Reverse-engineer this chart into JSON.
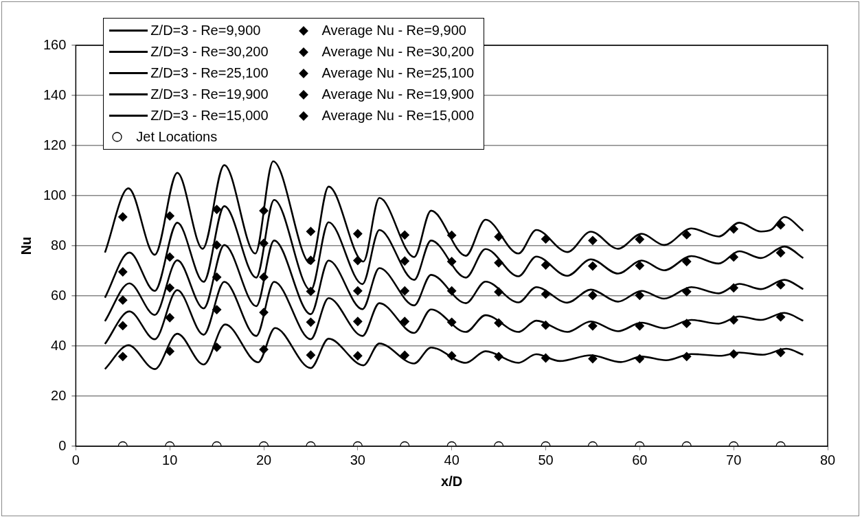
{
  "chart_data": {
    "type": "line",
    "xlabel": "x/D",
    "ylabel": "Nu",
    "xlim": [
      0,
      80
    ],
    "xticks": [
      0,
      10,
      20,
      30,
      40,
      50,
      60,
      70,
      80
    ],
    "ylim": [
      0,
      160
    ],
    "yticks": [
      0,
      20,
      40,
      60,
      80,
      100,
      120,
      140,
      160
    ],
    "grid": "y",
    "legend": "top left",
    "line_style": "solid",
    "series": [
      {
        "name": "Z/D=3 - Re=9,900",
        "color": "#000000",
        "type": "line",
        "marker": "none",
        "x": [
          3.1,
          5.6,
          8.4,
          10.8,
          13.6,
          15.9,
          19.4,
          21.2,
          25.0,
          26.9,
          30.6,
          32.3,
          36.0,
          37.8,
          41.5,
          43.6,
          47.1,
          49.0,
          51.5,
          54.8,
          58.0,
          60.2,
          62.8,
          65.5,
          68.7,
          70.6,
          73.1,
          75.6,
          77.4
        ],
        "values": [
          30.8,
          40.3,
          30.8,
          44.9,
          32.6,
          48.6,
          33.5,
          47.2,
          31.2,
          42.9,
          32.3,
          41.0,
          33.0,
          39.4,
          33.3,
          37.9,
          33.3,
          36.7,
          34.0,
          36.3,
          33.6,
          35.8,
          34.3,
          36.8,
          36.1,
          37.4,
          36.5,
          38.9,
          36.5
        ]
      },
      {
        "name": "Z/D=3 - Re=30,200",
        "color": "#000000",
        "type": "line",
        "marker": "none",
        "x": [
          3.1,
          5.6,
          8.4,
          10.8,
          13.5,
          15.8,
          19.1,
          21.0,
          25.0,
          26.9,
          30.6,
          32.3,
          36.0,
          37.8,
          41.5,
          43.6,
          47.1,
          49.0,
          52.3,
          54.8,
          57.7,
          60.2,
          62.6,
          65.5,
          68.4,
          70.6,
          72.9,
          74.0,
          75.4,
          77.4
        ],
        "values": [
          77.3,
          102.9,
          76.4,
          109.1,
          78.8,
          112.2,
          76.9,
          113.7,
          72.8,
          103.6,
          73.7,
          99.1,
          75.5,
          94.0,
          76.0,
          90.4,
          76.9,
          86.3,
          77.5,
          85.6,
          78.8,
          84.8,
          80.3,
          86.9,
          83.7,
          89.2,
          85.7,
          86.4,
          91.5,
          86.0
        ]
      },
      {
        "name": "Z/D=3 - Re=25,100",
        "color": "#000000",
        "type": "line",
        "marker": "none",
        "x": [
          3.1,
          5.7,
          8.4,
          10.8,
          13.6,
          15.8,
          19.2,
          21.1,
          25.0,
          26.9,
          30.5,
          32.3,
          36.0,
          37.8,
          41.5,
          43.6,
          47.1,
          49.0,
          52.3,
          54.8,
          57.7,
          60.2,
          62.6,
          65.5,
          68.4,
          70.6,
          72.9,
          75.4,
          77.4
        ],
        "values": [
          59.3,
          77.3,
          62.0,
          89.2,
          65.6,
          95.8,
          67.3,
          98.3,
          62.3,
          89.4,
          64.7,
          86.3,
          66.4,
          82.1,
          67.3,
          78.7,
          67.8,
          75.7,
          68.0,
          74.6,
          68.9,
          74.1,
          70.2,
          75.9,
          72.9,
          77.8,
          75.1,
          79.7,
          75.1
        ]
      },
      {
        "name": "Z/D=3 - Re=19,900",
        "color": "#000000",
        "type": "line",
        "marker": "none",
        "x": [
          3.1,
          5.7,
          8.4,
          10.8,
          13.6,
          15.8,
          19.2,
          21.1,
          25.0,
          26.9,
          30.5,
          32.3,
          36.0,
          37.8,
          41.5,
          43.6,
          47.1,
          49.0,
          52.3,
          54.8,
          57.7,
          60.2,
          62.6,
          65.5,
          68.4,
          70.6,
          72.9,
          75.4,
          77.4
        ],
        "values": [
          49.9,
          65.0,
          52.4,
          74.2,
          55.0,
          80.3,
          55.9,
          82.1,
          52.7,
          74.1,
          54.7,
          71.1,
          56.2,
          68.4,
          57.1,
          65.7,
          57.4,
          63.5,
          57.3,
          62.5,
          57.7,
          62.0,
          58.9,
          63.5,
          61.0,
          64.8,
          62.7,
          66.4,
          62.7
        ]
      },
      {
        "name": "Z/D=3 - Re=15,000",
        "color": "#000000",
        "type": "line",
        "marker": "none",
        "x": [
          3.1,
          5.7,
          8.4,
          10.8,
          13.6,
          15.8,
          19.2,
          21.1,
          25.0,
          26.9,
          30.5,
          32.3,
          36.0,
          37.8,
          41.5,
          43.6,
          47.1,
          49.0,
          52.3,
          54.8,
          57.7,
          60.2,
          62.6,
          65.5,
          68.4,
          70.6,
          72.9,
          75.4,
          77.4
        ],
        "values": [
          40.8,
          53.8,
          42.7,
          62.3,
          44.5,
          65.6,
          44.0,
          65.6,
          42.7,
          59.1,
          44.0,
          57.1,
          45.2,
          54.6,
          45.6,
          52.3,
          45.6,
          50.1,
          45.6,
          49.8,
          45.9,
          49.3,
          47.1,
          50.4,
          48.9,
          51.8,
          50.4,
          53.2,
          50.1
        ]
      },
      {
        "name": "Average Nu - Re=9,900",
        "color": "#000000",
        "type": "scatter",
        "marker": "diamond",
        "x": [
          5,
          10,
          15,
          20,
          25,
          30,
          35,
          40,
          45,
          50,
          55,
          60,
          65,
          70,
          75
        ],
        "values": [
          35.8,
          37.9,
          39.5,
          38.6,
          36.4,
          36.1,
          36.3,
          36.1,
          35.8,
          35.2,
          34.9,
          34.9,
          35.8,
          36.8,
          37.4
        ]
      },
      {
        "name": "Average Nu - Re=30,200",
        "color": "#000000",
        "type": "scatter",
        "marker": "diamond",
        "x": [
          5,
          10,
          15,
          20,
          25,
          30,
          35,
          40,
          45,
          50,
          55,
          60,
          65,
          70,
          75
        ],
        "values": [
          91.5,
          91.9,
          94.5,
          94.0,
          85.7,
          84.8,
          84.3,
          84.2,
          83.6,
          82.7,
          82.1,
          82.6,
          84.4,
          86.7,
          88.3
        ]
      },
      {
        "name": "Average Nu - Re=25,100",
        "color": "#000000",
        "type": "scatter",
        "marker": "diamond",
        "x": [
          5,
          10,
          15,
          20,
          25,
          30,
          35,
          40,
          45,
          50,
          55,
          60,
          65,
          70,
          75
        ],
        "values": [
          69.6,
          75.5,
          80.3,
          81.0,
          74.2,
          74.1,
          73.9,
          73.7,
          73.2,
          72.3,
          71.9,
          72.1,
          73.7,
          75.5,
          77.2
        ]
      },
      {
        "name": "Average Nu - Re=19,900",
        "color": "#000000",
        "type": "scatter",
        "marker": "diamond",
        "x": [
          5,
          10,
          15,
          20,
          25,
          30,
          35,
          40,
          45,
          50,
          55,
          60,
          65,
          70,
          75
        ],
        "values": [
          58.3,
          63.2,
          67.5,
          67.5,
          61.8,
          62.0,
          62.0,
          62.0,
          61.6,
          60.7,
          60.2,
          60.2,
          61.7,
          63.2,
          64.4
        ]
      },
      {
        "name": "Average Nu - Re=15,000",
        "color": "#000000",
        "type": "scatter",
        "marker": "diamond",
        "x": [
          5,
          10,
          15,
          20,
          25,
          30,
          35,
          40,
          45,
          50,
          55,
          60,
          65,
          70,
          75
        ],
        "values": [
          48.1,
          51.3,
          54.5,
          53.4,
          49.5,
          49.8,
          49.8,
          49.5,
          49.2,
          48.3,
          48.0,
          48.0,
          49.0,
          50.4,
          51.6
        ]
      },
      {
        "name": "Jet Locations",
        "color": "#000000",
        "type": "scatter",
        "marker": "circle",
        "x": [
          5,
          10,
          15,
          20,
          25,
          30,
          35,
          40,
          45,
          50,
          55,
          60,
          65,
          70,
          75
        ],
        "values": [
          0,
          0,
          0,
          0,
          0,
          0,
          0,
          0,
          0,
          0,
          0,
          0,
          0,
          0,
          0
        ]
      }
    ]
  }
}
